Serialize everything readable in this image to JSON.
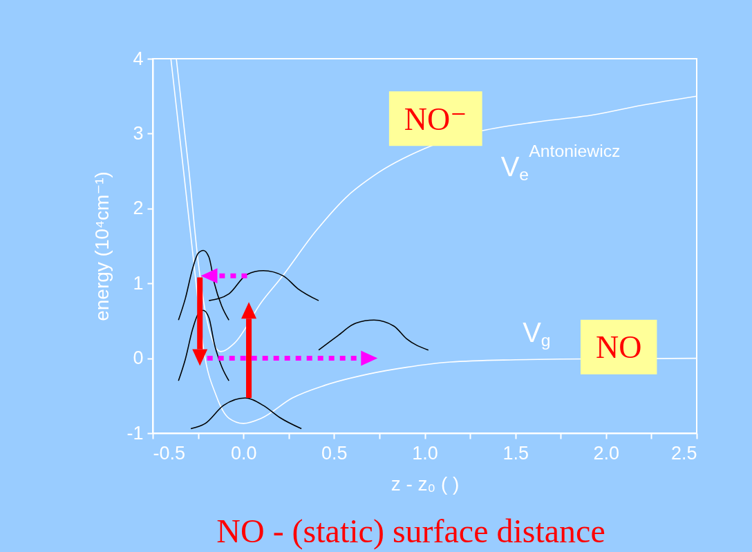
{
  "chart_data": {
    "type": "line",
    "xlabel": "z - z₀ (   )",
    "ylabel": "energy (10⁴cm⁻¹)",
    "xlim": [
      -0.5,
      2.5
    ],
    "ylim": [
      -1,
      4
    ],
    "xticks": [
      {
        "value": -0.5,
        "label": "-0.5"
      },
      {
        "value": -0.25,
        "label": null
      },
      {
        "value": 0,
        "label": "0.0"
      },
      {
        "value": 0.25,
        "label": null
      },
      0.5,
      {
        "value": 0.75,
        "label": null
      },
      {
        "value": 1,
        "label": "1.0"
      },
      {
        "value": 1.25,
        "label": null
      },
      1.5,
      {
        "value": 1.75,
        "label": null
      },
      {
        "value": 2,
        "label": "2.0"
      },
      {
        "value": 2.25,
        "label": null
      },
      2.5
    ],
    "yticks": [
      -1,
      0,
      1,
      2,
      3,
      4
    ],
    "grid": false,
    "legend": false,
    "series": [
      {
        "color": "#ffffff",
        "x": [
          -0.37,
          -0.3,
          -0.25,
          -0.2,
          -0.126,
          -0.05,
          0.1,
          0.21,
          0.4,
          0.58,
          0.72,
          1.0,
          1.32,
          1.6,
          1.93,
          2.2,
          2.5
        ],
        "values": [
          4,
          2.5,
          1.3,
          0.5,
          0.09,
          0.2,
          0.75,
          1.08,
          1.7,
          2.18,
          2.44,
          2.8,
          3.04,
          3.15,
          3.25,
          3.38,
          3.5
        ]
      },
      {
        "color": "#ffffff",
        "x": [
          -0.4,
          -0.33,
          -0.27,
          -0.22,
          -0.15,
          -0.08,
          0,
          0.1,
          0.27,
          0.45,
          0.69,
          0.9,
          1.14,
          1.5,
          1.75,
          2.5
        ],
        "values": [
          4,
          2.5,
          1.2,
          0.13,
          -0.5,
          -0.8,
          -0.87,
          -0.8,
          -0.53,
          -0.36,
          -0.21,
          -0.12,
          -0.05,
          -0.02,
          -0.01,
          0
        ]
      },
      {
        "color": "#000000",
        "x": [
          -0.358,
          -0.32,
          -0.28,
          -0.25,
          -0.221,
          -0.19,
          -0.16,
          -0.12,
          -0.08
        ],
        "values": [
          0.51,
          0.8,
          1.2,
          1.4,
          1.44,
          1.35,
          1.0,
          0.7,
          0.51
        ]
      },
      {
        "color": "#000000",
        "x": [
          -0.358,
          -0.32,
          -0.28,
          -0.25,
          -0.221,
          -0.19,
          -0.16,
          -0.12,
          -0.08
        ],
        "values": [
          -0.3,
          -0.01,
          0.39,
          0.59,
          0.64,
          0.54,
          0.19,
          -0.11,
          -0.3
        ]
      },
      {
        "color": "#000000",
        "x": [
          -0.19,
          -0.08,
          0.02,
          0.11,
          0.22,
          0.3,
          0.415
        ],
        "values": [
          0.77,
          0.86,
          1.12,
          1.17,
          1.1,
          0.93,
          0.77
        ]
      },
      {
        "color": "#000000",
        "x": [
          0.415,
          0.52,
          0.62,
          0.72,
          0.83,
          0.9,
          1.02
        ],
        "values": [
          0.11,
          0.3,
          0.47,
          0.51,
          0.43,
          0.26,
          0.11
        ]
      },
      {
        "color": "#000000",
        "x": [
          -0.29,
          -0.21,
          -0.11,
          0.01,
          0.11,
          0.2,
          0.32
        ],
        "values": [
          -0.94,
          -0.87,
          -0.63,
          -0.53,
          -0.63,
          -0.79,
          -0.94
        ]
      }
    ],
    "annotations": [
      "NO⁻",
      "V$_{e}$$^{Antoniewicz}$",
      "V$_{g}$",
      "NO",
      "NO - (static) surface distance"
    ]
  }
}
